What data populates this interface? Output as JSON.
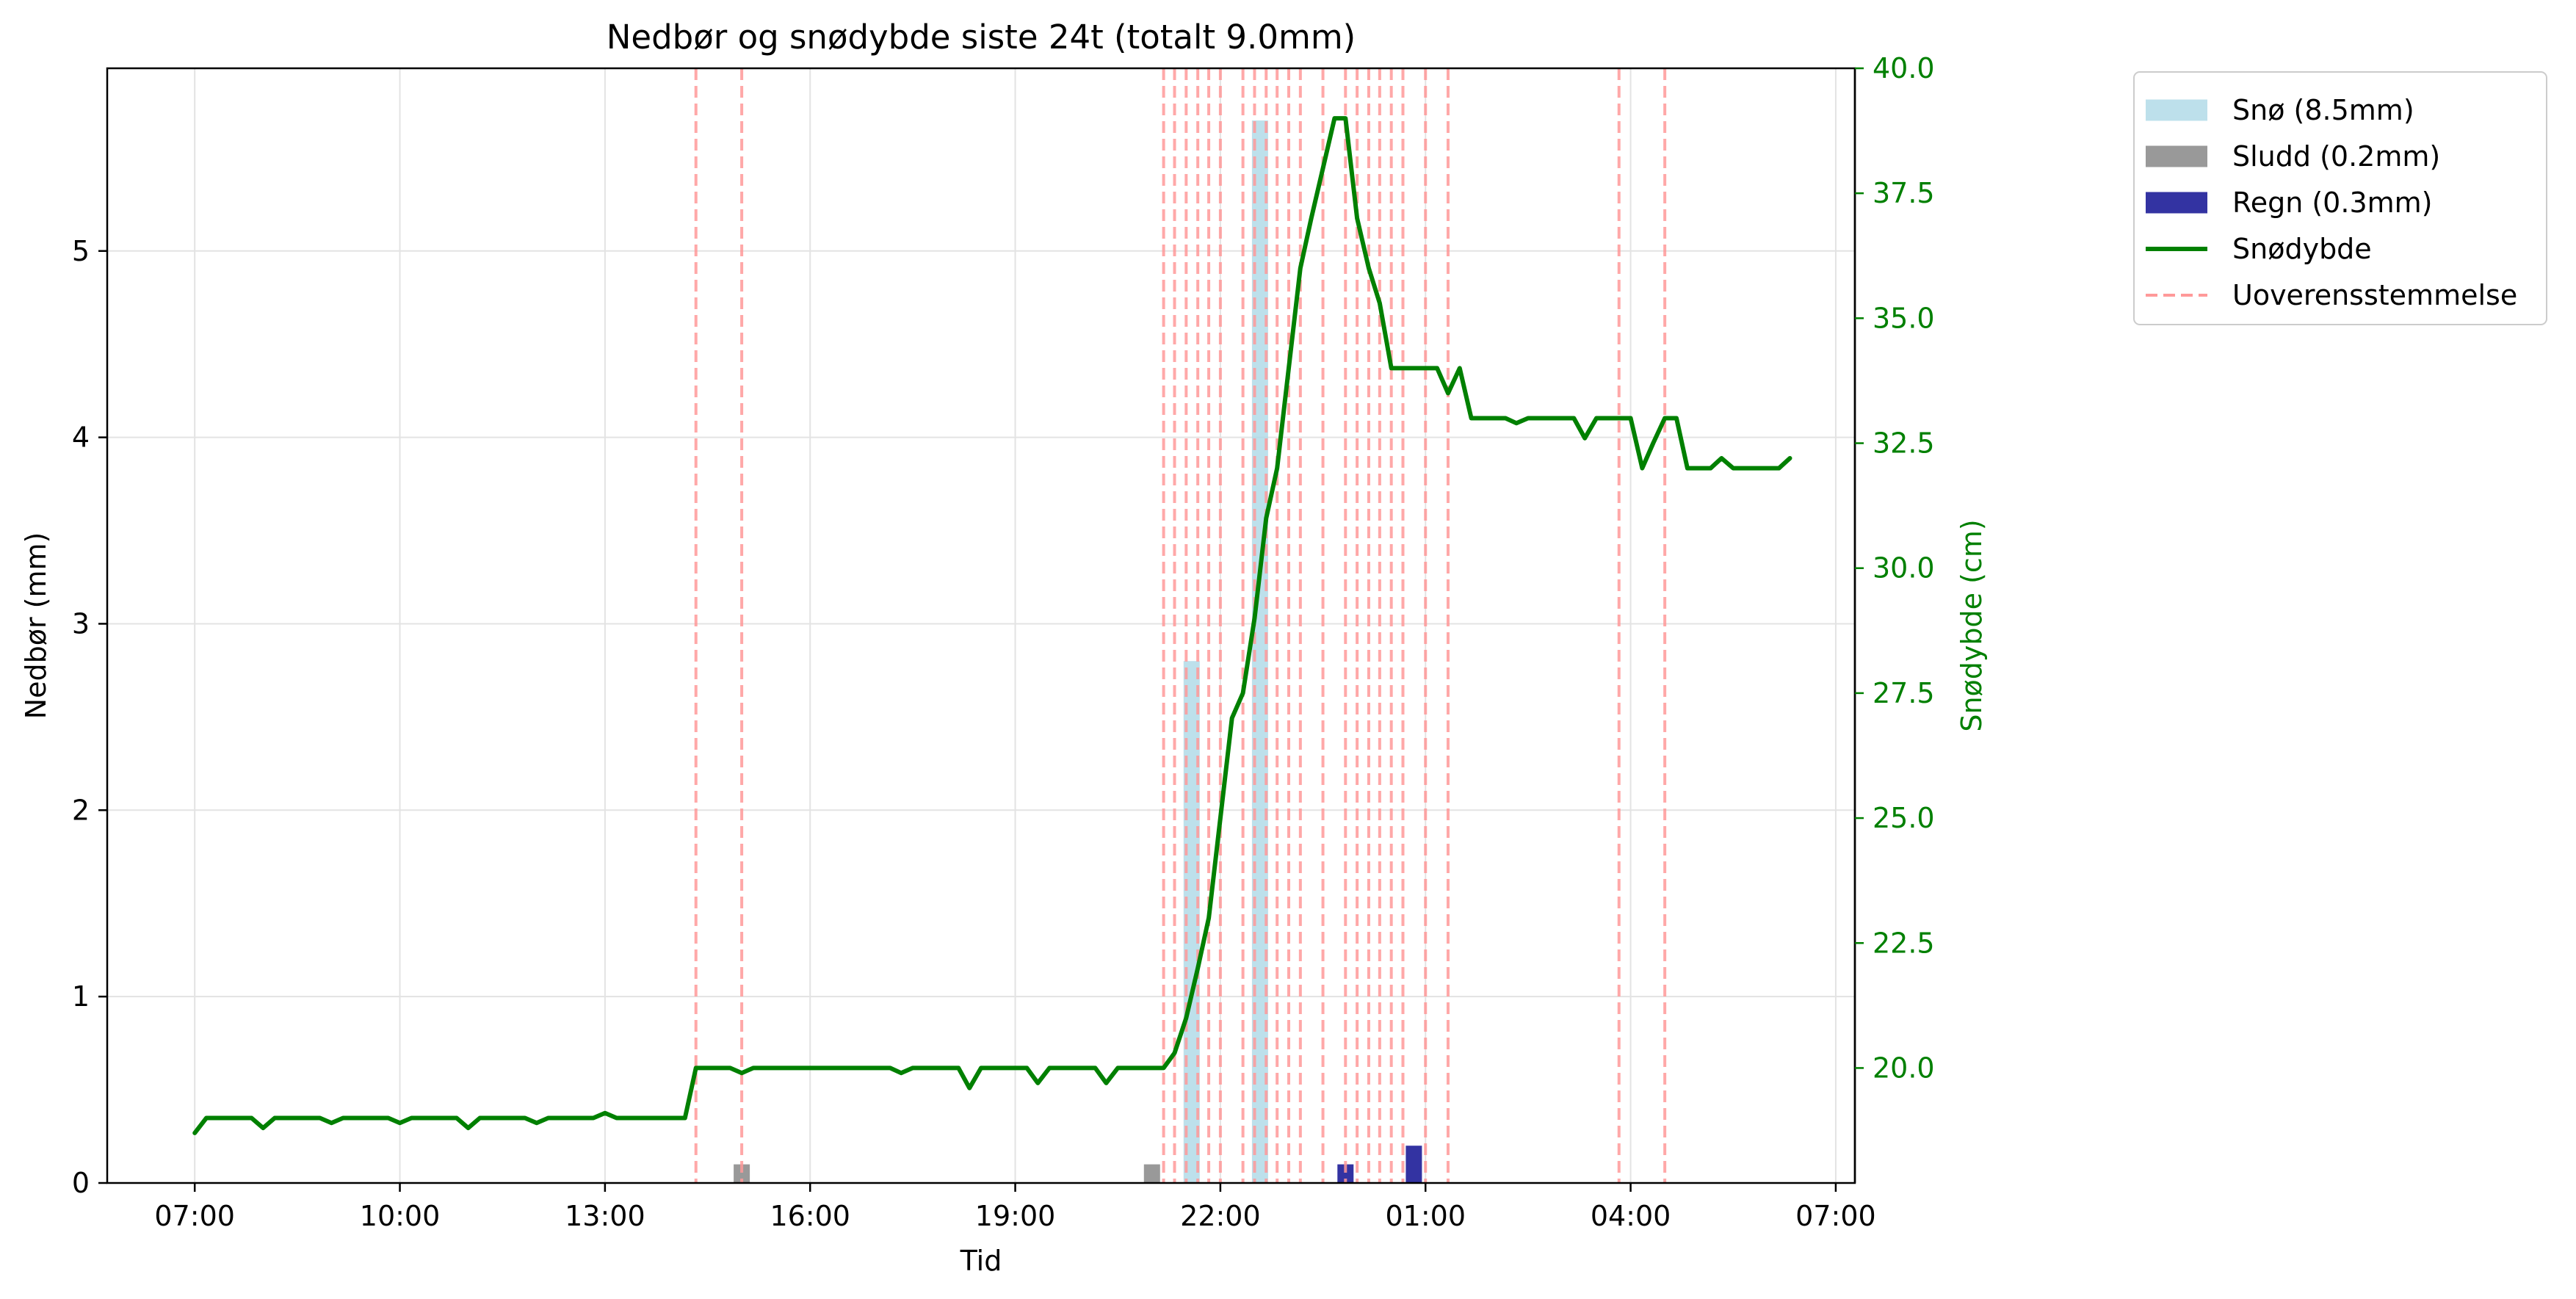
{
  "chart_data": {
    "type": "bar+line",
    "title": "Nedbør og snødybde siste 24t (totalt 9.0mm)",
    "xlabel": "Tid",
    "ylabel_left": "Nedbør (mm)",
    "ylabel_right": "Snødybde (cm)",
    "x_tick_labels": [
      "07:00",
      "10:00",
      "13:00",
      "16:00",
      "19:00",
      "22:00",
      "01:00",
      "04:00",
      "07:00"
    ],
    "x_tick_hours": [
      0,
      3,
      6,
      9,
      12,
      15,
      18,
      21,
      24
    ],
    "x_range_hours": [
      -1.28,
      24.28
    ],
    "ylim_left": [
      0,
      5.98
    ],
    "y_ticks_left": [
      0,
      1,
      2,
      3,
      4,
      5
    ],
    "ylim_right": [
      17.7,
      40.0
    ],
    "y_ticks_right": [
      20.0,
      22.5,
      25.0,
      27.5,
      30.0,
      32.5,
      35.0,
      37.5,
      40.0
    ],
    "y_tick_labels_right": [
      "20.0",
      "22.5",
      "25.0",
      "27.5",
      "30.0",
      "32.5",
      "35.0",
      "37.5",
      "40.0"
    ],
    "grid": true,
    "legend_position": "outside-top-right",
    "colors": {
      "snow": "#add8e6",
      "sleet": "#808080",
      "rain": "#00008b",
      "depth": "#008000",
      "discrepancy": "#ff9999",
      "right_axis": "#008000"
    },
    "bar_series": [
      {
        "name": "Snø (8.5mm)",
        "key": "snow",
        "points": [
          [
            14.58,
            2.8
          ],
          [
            15.58,
            5.7
          ]
        ]
      },
      {
        "name": "Sludd (0.2mm)",
        "key": "sleet",
        "points": [
          [
            8.0,
            0.1
          ],
          [
            14.0,
            0.1
          ]
        ]
      },
      {
        "name": "Regn (0.3mm)",
        "key": "rain",
        "points": [
          [
            16.83,
            0.1
          ],
          [
            17.83,
            0.2
          ]
        ]
      }
    ],
    "line_series": {
      "name": "Snødybde",
      "key": "depth",
      "points": [
        [
          0,
          18.7
        ],
        [
          0.17,
          19.0
        ],
        [
          0.5,
          19.0
        ],
        [
          0.83,
          19.0
        ],
        [
          1.0,
          18.8
        ],
        [
          1.17,
          19.0
        ],
        [
          1.5,
          19.0
        ],
        [
          1.83,
          19.0
        ],
        [
          2.0,
          18.9
        ],
        [
          2.17,
          19.0
        ],
        [
          2.5,
          19.0
        ],
        [
          2.83,
          19.0
        ],
        [
          3.0,
          18.9
        ],
        [
          3.17,
          19.0
        ],
        [
          3.5,
          19.0
        ],
        [
          3.83,
          19.0
        ],
        [
          4.0,
          18.8
        ],
        [
          4.17,
          19.0
        ],
        [
          4.5,
          19.0
        ],
        [
          4.83,
          19.0
        ],
        [
          5.0,
          18.9
        ],
        [
          5.17,
          19.0
        ],
        [
          5.5,
          19.0
        ],
        [
          5.83,
          19.0
        ],
        [
          6.0,
          19.1
        ],
        [
          6.17,
          19.0
        ],
        [
          6.5,
          19.0
        ],
        [
          6.83,
          19.0
        ],
        [
          7.17,
          19.0
        ],
        [
          7.33,
          20.0
        ],
        [
          7.67,
          20.0
        ],
        [
          7.83,
          20.0
        ],
        [
          8.0,
          19.9
        ],
        [
          8.17,
          20.0
        ],
        [
          8.5,
          20.0
        ],
        [
          8.83,
          20.0
        ],
        [
          9.17,
          20.0
        ],
        [
          9.5,
          20.0
        ],
        [
          9.83,
          20.0
        ],
        [
          10.0,
          20.0
        ],
        [
          10.17,
          20.0
        ],
        [
          10.33,
          19.9
        ],
        [
          10.5,
          20.0
        ],
        [
          10.83,
          20.0
        ],
        [
          11.0,
          20.0
        ],
        [
          11.17,
          20.0
        ],
        [
          11.33,
          19.6
        ],
        [
          11.5,
          20.0
        ],
        [
          11.83,
          20.0
        ],
        [
          12.0,
          20.0
        ],
        [
          12.17,
          20.0
        ],
        [
          12.33,
          19.7
        ],
        [
          12.5,
          20.0
        ],
        [
          12.83,
          20.0
        ],
        [
          13.0,
          20.0
        ],
        [
          13.17,
          20.0
        ],
        [
          13.33,
          19.7
        ],
        [
          13.5,
          20.0
        ],
        [
          13.83,
          20.0
        ],
        [
          14.0,
          20.0
        ],
        [
          14.17,
          20.0
        ],
        [
          14.33,
          20.3
        ],
        [
          14.5,
          21.0
        ],
        [
          14.67,
          22.0
        ],
        [
          14.83,
          23.0
        ],
        [
          15.0,
          25.0
        ],
        [
          15.17,
          27.0
        ],
        [
          15.33,
          27.5
        ],
        [
          15.5,
          29.0
        ],
        [
          15.67,
          31.0
        ],
        [
          15.83,
          32.0
        ],
        [
          16.0,
          34.0
        ],
        [
          16.17,
          36.0
        ],
        [
          16.33,
          37.0
        ],
        [
          16.5,
          38.0
        ],
        [
          16.67,
          39.0
        ],
        [
          16.83,
          39.0
        ],
        [
          17.0,
          37.0
        ],
        [
          17.17,
          36.0
        ],
        [
          17.33,
          35.3
        ],
        [
          17.5,
          34.0
        ],
        [
          17.67,
          34.0
        ],
        [
          17.83,
          34.0
        ],
        [
          18.0,
          34.0
        ],
        [
          18.17,
          34.0
        ],
        [
          18.33,
          33.5
        ],
        [
          18.5,
          34.0
        ],
        [
          18.67,
          33.0
        ],
        [
          18.83,
          33.0
        ],
        [
          19.0,
          33.0
        ],
        [
          19.17,
          33.0
        ],
        [
          19.33,
          32.9
        ],
        [
          19.5,
          33.0
        ],
        [
          19.67,
          33.0
        ],
        [
          19.83,
          33.0
        ],
        [
          20.0,
          33.0
        ],
        [
          20.17,
          33.0
        ],
        [
          20.33,
          32.6
        ],
        [
          20.5,
          33.0
        ],
        [
          20.67,
          33.0
        ],
        [
          20.83,
          33.0
        ],
        [
          21.0,
          33.0
        ],
        [
          21.17,
          32.0
        ],
        [
          21.33,
          32.5
        ],
        [
          21.5,
          33.0
        ],
        [
          21.67,
          33.0
        ],
        [
          21.83,
          32.0
        ],
        [
          22.0,
          32.0
        ],
        [
          22.17,
          32.0
        ],
        [
          22.33,
          32.2
        ],
        [
          22.5,
          32.0
        ],
        [
          22.67,
          32.0
        ],
        [
          22.83,
          32.0
        ],
        [
          23.0,
          32.0
        ],
        [
          23.17,
          32.0
        ],
        [
          23.33,
          32.2
        ]
      ]
    },
    "discrepancy_series": {
      "name": "Uoverensstemmelse",
      "key": "discrepancy",
      "x": [
        7.33,
        8.0,
        14.17,
        14.33,
        14.5,
        14.67,
        14.83,
        15.0,
        15.33,
        15.5,
        15.67,
        15.83,
        16.0,
        16.17,
        16.5,
        16.83,
        17.0,
        17.17,
        17.33,
        17.5,
        17.67,
        18.0,
        18.33,
        20.83,
        21.5
      ]
    },
    "legend": [
      "Snø (8.5mm)",
      "Sludd (0.2mm)",
      "Regn (0.3mm)",
      "Snødybde",
      "Uoverensstemmelse"
    ]
  }
}
